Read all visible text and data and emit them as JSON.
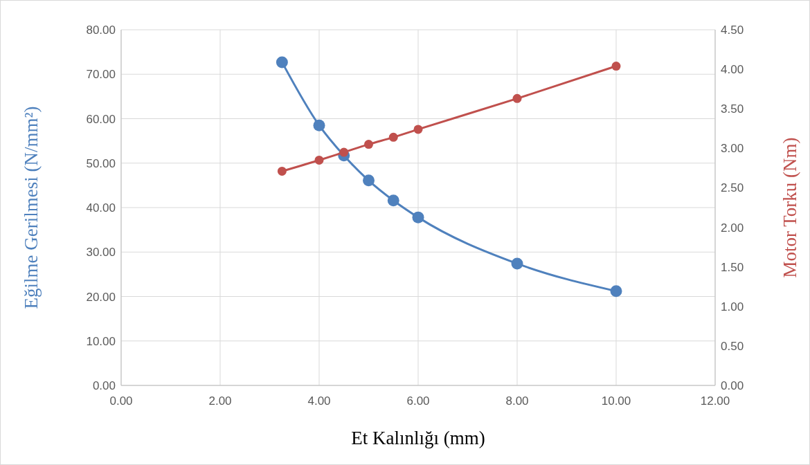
{
  "chart_data": {
    "type": "line",
    "xlabel": "Et Kalınlığı (mm)",
    "ylabel": "Eğilme Gerilmesi (N/mm²)",
    "y2label": "Motor Torku (Nm)",
    "xlim": [
      0,
      12
    ],
    "xticks": [
      {
        "value": 0,
        "label": "0.00"
      },
      {
        "value": 2,
        "label": "2.00"
      },
      {
        "value": 4,
        "label": "4.00"
      },
      {
        "value": 6,
        "label": "6.00"
      },
      {
        "value": 8,
        "label": "8.00"
      },
      {
        "value": 10,
        "label": "10.00"
      },
      {
        "value": 12,
        "label": "12.00"
      }
    ],
    "ylim": [
      0,
      80
    ],
    "yticks": [
      {
        "value": 0,
        "label": "0.00"
      },
      {
        "value": 10,
        "label": "10.00"
      },
      {
        "value": 20,
        "label": "20.00"
      },
      {
        "value": 30,
        "label": "30.00"
      },
      {
        "value": 40,
        "label": "40.00"
      },
      {
        "value": 50,
        "label": "50.00"
      },
      {
        "value": 60,
        "label": "60.00"
      },
      {
        "value": 70,
        "label": "70.00"
      },
      {
        "value": 80,
        "label": "80.00"
      }
    ],
    "y2lim": [
      0,
      4.5
    ],
    "y2ticks": [
      {
        "value": 0,
        "label": "0.00"
      },
      {
        "value": 0.5,
        "label": "0.50"
      },
      {
        "value": 1,
        "label": "1.00"
      },
      {
        "value": 1.5,
        "label": "1.50"
      },
      {
        "value": 2,
        "label": "2.00"
      },
      {
        "value": 2.5,
        "label": "2.50"
      },
      {
        "value": 3,
        "label": "3.00"
      },
      {
        "value": 3.5,
        "label": "3.50"
      },
      {
        "value": 4,
        "label": "4.00"
      },
      {
        "value": 4.5,
        "label": "4.50"
      }
    ],
    "x": [
      3.25,
      4,
      4.5,
      5,
      5.5,
      6,
      8,
      10
    ],
    "series": [
      {
        "color": "#4f81bd",
        "values": [
          72.7,
          58.5,
          51.7,
          46.1,
          41.6,
          37.8,
          27.4,
          21.2
        ]
      },
      {
        "color": "#c0504d",
        "axis": "y2",
        "values": [
          2.71,
          2.85,
          2.95,
          3.05,
          3.14,
          3.24,
          3.63,
          4.04
        ]
      }
    ],
    "grid": true,
    "marker": "circle",
    "line_style": "solid"
  }
}
